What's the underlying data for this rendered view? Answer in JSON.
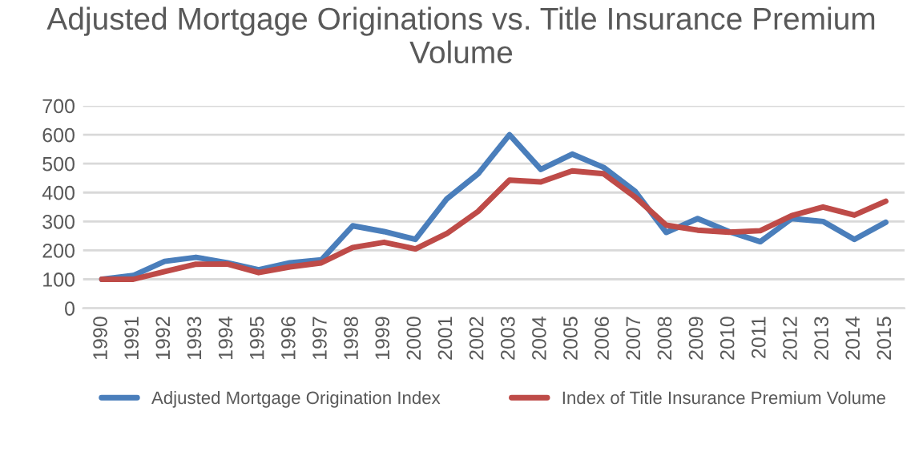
{
  "chart_data": {
    "type": "line",
    "title": "Adjusted Mortgage Originations vs. Title Insurance Premium Volume",
    "categories": [
      "1990",
      "1991",
      "1992",
      "1993",
      "1994",
      "1995",
      "1996",
      "1997",
      "1998",
      "1999",
      "2000",
      "2001",
      "2002",
      "2003",
      "2004",
      "2005",
      "2006",
      "2007",
      "2008",
      "2009",
      "2010",
      "2011",
      "2012",
      "2013",
      "2014",
      "2015"
    ],
    "series": [
      {
        "name": "Adjusted Mortgage Origination Index",
        "color": "#4a7ebb",
        "values": [
          100,
          113,
          162,
          176,
          157,
          133,
          157,
          167,
          285,
          265,
          238,
          378,
          465,
          600,
          480,
          533,
          487,
          405,
          262,
          310,
          265,
          230,
          310,
          300,
          238,
          297
        ]
      },
      {
        "name": "Index of Title Insurance Premium Volume",
        "color": "#be4b48",
        "values": [
          100,
          100,
          127,
          152,
          153,
          123,
          143,
          157,
          210,
          228,
          205,
          258,
          335,
          443,
          437,
          475,
          465,
          385,
          287,
          270,
          263,
          268,
          320,
          350,
          322,
          370
        ]
      }
    ],
    "ylim": [
      0,
      700
    ],
    "yticks": [
      0,
      100,
      200,
      300,
      400,
      500,
      600,
      700
    ],
    "grid": "y",
    "legend": "bottom",
    "marker": "none",
    "line_style": "solid"
  }
}
